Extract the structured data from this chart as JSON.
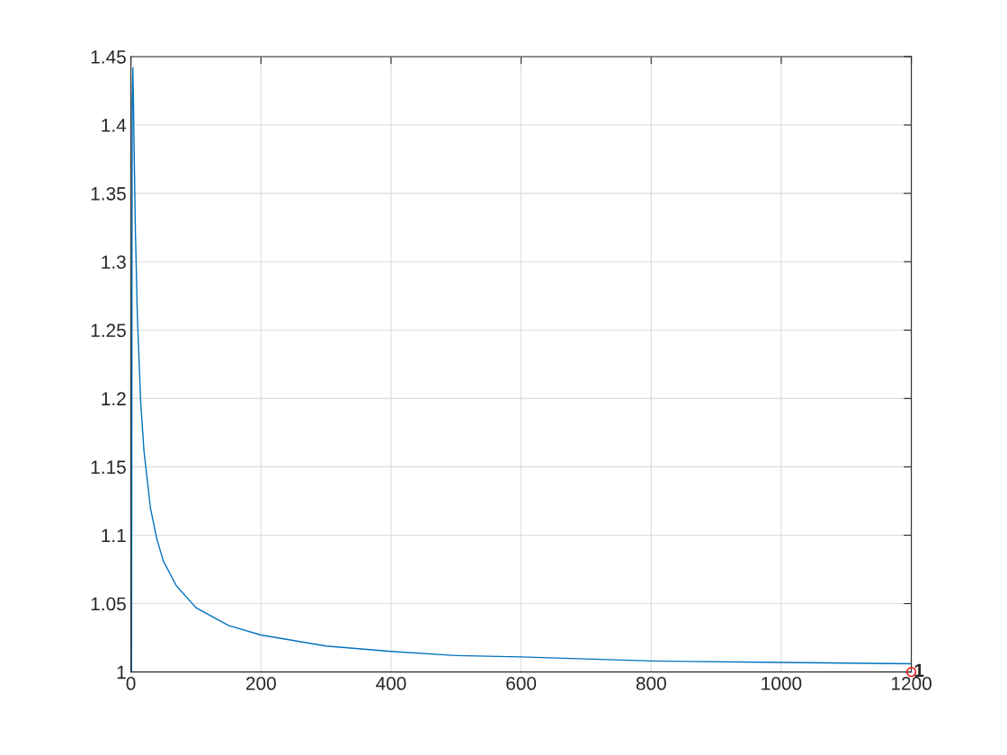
{
  "chart_data": {
    "type": "line",
    "series": [
      {
        "color": "#0072bd",
        "x": [
          1,
          2,
          3,
          4,
          5,
          7,
          10,
          15,
          20,
          30,
          40,
          50,
          70,
          100,
          150,
          200,
          300,
          400,
          500,
          600,
          800,
          1000,
          1200
        ],
        "values": [
          1,
          1.414,
          1.442,
          1.414,
          1.38,
          1.32,
          1.259,
          1.198,
          1.162,
          1.12,
          1.097,
          1.081,
          1.063,
          1.047,
          1.034,
          1.027,
          1.019,
          1.015,
          1.012,
          1.011,
          1.008,
          1.007,
          1.006
        ]
      },
      {
        "type": "scatter",
        "color": "#ff0000",
        "marker": "circle",
        "x": [
          1200
        ],
        "values": [
          1
        ]
      }
    ],
    "annotations": [
      {
        "text": "1",
        "x": 1200,
        "y": 1
      }
    ],
    "xlim": [
      0,
      1200
    ],
    "xticks": [
      0,
      200,
      400,
      600,
      800,
      1000,
      1200
    ],
    "ylim": [
      1,
      1.45
    ],
    "yticks": [
      1,
      1.05,
      1.1,
      1.15,
      1.2,
      1.25,
      1.3,
      1.35,
      1.4,
      1.45
    ],
    "grid": true
  }
}
